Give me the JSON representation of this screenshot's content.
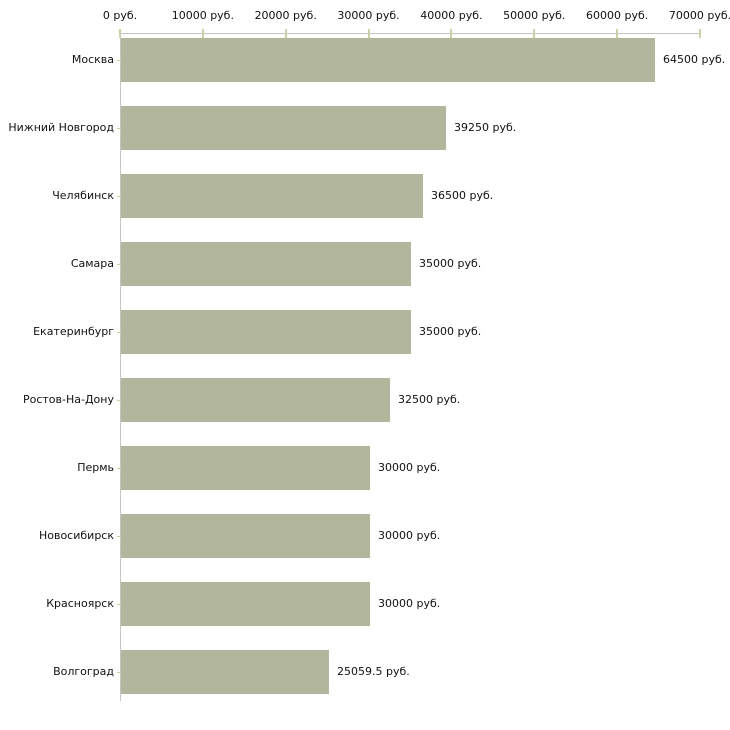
{
  "chart_data": {
    "type": "bar",
    "orientation": "horizontal",
    "title": "",
    "xlabel": "",
    "ylabel": "",
    "categories": [
      "Москва",
      "Нижний Новгород",
      "Челябинск",
      "Самара",
      "Екатеринбург",
      "Ростов-На-Дону",
      "Пермь",
      "Новосибирск",
      "Красноярск",
      "Волгоград"
    ],
    "values": [
      64500,
      39250,
      36500,
      35000,
      35000,
      32500,
      30000,
      30000,
      30000,
      25059.5
    ],
    "value_labels": [
      "64500 руб.",
      "39250 руб.",
      "36500 руб.",
      "35000 руб.",
      "35000 руб.",
      "32500 руб.",
      "30000 руб.",
      "30000 руб.",
      "30000 руб.",
      "25059.5 руб."
    ],
    "x_axis": {
      "position": "top",
      "min": 0,
      "max": 70000,
      "tick_interval": 10000,
      "tick_values": [
        0,
        10000,
        20000,
        30000,
        40000,
        50000,
        60000,
        70000
      ],
      "tick_labels": [
        "0 руб.",
        "10000 руб.",
        "20000 руб.",
        "30000 руб.",
        "40000 руб.",
        "50000 руб.",
        "60000 руб.",
        "70000 руб."
      ]
    },
    "grid": false,
    "legend": false,
    "unit_suffix": " руб.",
    "colors": {
      "bar_fill": "#b1b69c",
      "axis_line": "#c4c4c4",
      "tick_mark": "#cdcfa6",
      "text": "#111111",
      "background": "#ffffff"
    }
  }
}
